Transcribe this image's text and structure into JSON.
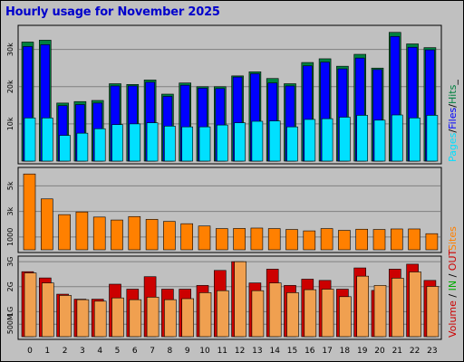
{
  "title": "Hourly usage for November 2025",
  "colors": {
    "background": "#c0c0c0",
    "title": "#0000cc",
    "hits": "#008040",
    "files": "#0000ff",
    "pages": "#00e0ff",
    "sites": "#ff8000",
    "volume_out": "#cc0000",
    "volume_in": "#f0a050",
    "legend_in": "#00aa00"
  },
  "chart_data": [
    {
      "type": "bar",
      "name": "requests",
      "categories": [
        "0",
        "1",
        "2",
        "3",
        "4",
        "5",
        "6",
        "7",
        "8",
        "9",
        "10",
        "11",
        "12",
        "13",
        "14",
        "15",
        "16",
        "17",
        "18",
        "19",
        "20",
        "21",
        "22",
        "23"
      ],
      "series": [
        {
          "name": "Hits",
          "values": [
            32000,
            32500,
            15600,
            16000,
            16300,
            20800,
            20600,
            21800,
            18000,
            21000,
            20000,
            20000,
            22900,
            24000,
            22200,
            20800,
            26500,
            27500,
            25500,
            28700,
            25000,
            34600,
            31500,
            30500
          ]
        },
        {
          "name": "Files",
          "values": [
            30800,
            31300,
            14900,
            15200,
            15600,
            20200,
            20200,
            21200,
            17400,
            20400,
            19600,
            19500,
            22600,
            23500,
            21000,
            20200,
            25600,
            26600,
            24800,
            27700,
            24600,
            33500,
            30600,
            29900
          ]
        },
        {
          "name": "Pages",
          "values": [
            11600,
            11600,
            6900,
            7500,
            8700,
            9800,
            10000,
            10300,
            9400,
            9200,
            9200,
            9700,
            10300,
            10700,
            10800,
            9200,
            11200,
            11400,
            11800,
            12300,
            11000,
            12400,
            11600,
            12300
          ]
        }
      ],
      "y_ticks": [
        "10k",
        "20k",
        "30k"
      ],
      "ylim": [
        0,
        36000
      ],
      "legend": [
        "Pages",
        "Files",
        "Hits"
      ]
    },
    {
      "type": "bar",
      "name": "sites",
      "categories": [
        "0",
        "1",
        "2",
        "3",
        "4",
        "5",
        "6",
        "7",
        "8",
        "9",
        "10",
        "11",
        "12",
        "13",
        "14",
        "15",
        "16",
        "17",
        "18",
        "19",
        "20",
        "21",
        "22",
        "23"
      ],
      "series": [
        {
          "name": "Sites",
          "values": [
            5930,
            3980,
            2750,
            2960,
            2560,
            2330,
            2600,
            2380,
            2220,
            2040,
            1860,
            1660,
            1670,
            1700,
            1660,
            1590,
            1480,
            1660,
            1520,
            1610,
            1590,
            1630,
            1630,
            1260
          ]
        }
      ],
      "y_ticks": [
        "1000",
        "3k",
        "5k"
      ],
      "ylim": [
        0,
        6300
      ],
      "legend": [
        "Sites"
      ]
    },
    {
      "type": "bar",
      "name": "volume",
      "categories": [
        "0",
        "1",
        "2",
        "3",
        "4",
        "5",
        "6",
        "7",
        "8",
        "9",
        "10",
        "11",
        "12",
        "13",
        "14",
        "15",
        "16",
        "17",
        "18",
        "19",
        "20",
        "21",
        "22",
        "23"
      ],
      "series": [
        {
          "name": "OUT",
          "values": [
            2.55,
            2.15,
            1.65,
            1.48,
            1.42,
            1.55,
            1.48,
            1.58,
            1.48,
            1.52,
            1.76,
            1.84,
            3.0,
            1.84,
            2.15,
            1.76,
            1.88,
            1.9,
            1.6,
            2.42,
            2.05,
            2.34,
            2.59,
            2.01
          ]
        },
        {
          "name": "IN",
          "values": [
            2.6,
            2.35,
            1.7,
            1.5,
            1.5,
            2.1,
            1.9,
            2.4,
            1.9,
            1.9,
            2.05,
            2.65,
            3.0,
            2.15,
            2.7,
            2.05,
            2.3,
            2.25,
            1.9,
            2.75,
            1.85,
            2.7,
            2.9,
            2.25
          ]
        }
      ],
      "y_ticks": [
        "500M",
        "1G",
        "2G",
        "3G"
      ],
      "ylim": [
        0,
        3.15
      ],
      "legend": [
        "Volume",
        "IN",
        "OUT"
      ]
    }
  ]
}
